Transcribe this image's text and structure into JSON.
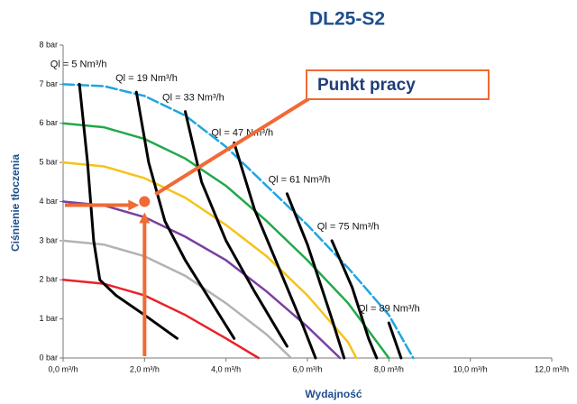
{
  "chart_data": {
    "type": "line",
    "title": "DL25-S2",
    "xlabel": "Wydajność",
    "ylabel": "Ciśnienie tłoczenia",
    "xlim": [
      0,
      12
    ],
    "ylim": [
      0,
      8
    ],
    "xticks": [
      {
        "value": 0,
        "label": "0,0 m³/h"
      },
      {
        "value": 2,
        "label": "2,0 m³/h"
      },
      {
        "value": 4,
        "label": "4,0 m³/h"
      },
      {
        "value": 6,
        "label": "6,0 m³/h"
      },
      {
        "value": 8,
        "label": "8,0 m³/h"
      },
      {
        "value": 10,
        "label": "10,0 m³/h"
      },
      {
        "value": 12,
        "label": "12,0 m³/h"
      }
    ],
    "yticks": [
      {
        "value": 0,
        "label": "0 bar"
      },
      {
        "value": 1,
        "label": "1 bar"
      },
      {
        "value": 2,
        "label": "2 bar"
      },
      {
        "value": 3,
        "label": "3 bar"
      },
      {
        "value": 4,
        "label": "4 bar"
      },
      {
        "value": 5,
        "label": "5 bar"
      },
      {
        "value": 6,
        "label": "6 bar"
      },
      {
        "value": 7,
        "label": "7 bar"
      },
      {
        "value": 8,
        "label": "8 bar"
      }
    ],
    "series": [
      {
        "color": "#e8222a",
        "x": [
          0,
          1,
          2,
          3,
          4,
          4.8
        ],
        "values": [
          2,
          1.9,
          1.6,
          1.1,
          0.5,
          0
        ]
      },
      {
        "color": "#b3b3b3",
        "x": [
          0,
          1,
          2,
          3,
          4,
          5,
          5.6
        ],
        "values": [
          3,
          2.9,
          2.6,
          2.1,
          1.4,
          0.6,
          0
        ]
      },
      {
        "color": "#7a3fa0",
        "x": [
          0,
          1,
          2,
          3,
          4,
          5,
          6,
          6.8
        ],
        "values": [
          4,
          3.9,
          3.6,
          3.1,
          2.5,
          1.7,
          0.8,
          0
        ]
      },
      {
        "color": "#f7c21a",
        "x": [
          0,
          1,
          2,
          3,
          4,
          5,
          6,
          7,
          7.2
        ],
        "values": [
          5,
          4.9,
          4.6,
          4.1,
          3.4,
          2.6,
          1.6,
          0.4,
          0
        ]
      },
      {
        "color": "#22a84a",
        "x": [
          0,
          1,
          2,
          3,
          4,
          5,
          6,
          7,
          8
        ],
        "values": [
          6,
          5.9,
          5.6,
          5.1,
          4.4,
          3.5,
          2.5,
          1.4,
          0
        ]
      },
      {
        "color": "#1ea6e0",
        "dashed": true,
        "x": [
          0,
          1,
          2,
          3,
          4,
          5,
          6,
          7,
          8,
          8.6
        ],
        "values": [
          7,
          6.95,
          6.7,
          6.2,
          5.4,
          4.4,
          3.4,
          2.3,
          1.1,
          0
        ]
      },
      {
        "name": "Ql = 5 Nm³/h",
        "color": "#000000",
        "x": [
          0.4,
          0.6,
          0.75,
          0.9,
          1.3,
          2.0,
          2.8
        ],
        "values": [
          7,
          5,
          3,
          2,
          1.6,
          1.1,
          0.5
        ]
      },
      {
        "name": "Ql = 19 Nm³/h",
        "color": "#000000",
        "x": [
          1.8,
          2.1,
          2.5,
          3,
          3.6,
          4.2
        ],
        "values": [
          6.8,
          5,
          3.5,
          2.5,
          1.5,
          0.5
        ]
      },
      {
        "name": "Ql = 33 Nm³/h",
        "color": "#000000",
        "x": [
          3.0,
          3.4,
          4,
          4.7,
          5.5
        ],
        "values": [
          6.3,
          4.5,
          3,
          1.7,
          0.3
        ]
      },
      {
        "name": "Ql = 47 Nm³/h",
        "color": "#000000",
        "x": [
          4.2,
          4.7,
          5.3,
          5.9,
          6.2
        ],
        "values": [
          5.5,
          3.8,
          2.3,
          0.8,
          0
        ]
      },
      {
        "name": "Ql = 61 Nm³/h",
        "color": "#000000",
        "x": [
          5.5,
          6,
          6.6,
          6.9
        ],
        "values": [
          4.2,
          2.9,
          1,
          0
        ]
      },
      {
        "name": "Ql = 75 Nm³/h",
        "color": "#000000",
        "x": [
          6.6,
          7.1,
          7.5,
          7.7
        ],
        "values": [
          3.0,
          1.8,
          0.5,
          0
        ]
      },
      {
        "name": "Ql = 89 Nm³/h",
        "color": "#000000",
        "x": [
          8.0,
          8.3
        ],
        "values": [
          0.9,
          0
        ]
      }
    ],
    "annotation": {
      "text": "Punkt pracy",
      "x": 2,
      "y": 4,
      "color": "#f06a35"
    }
  }
}
